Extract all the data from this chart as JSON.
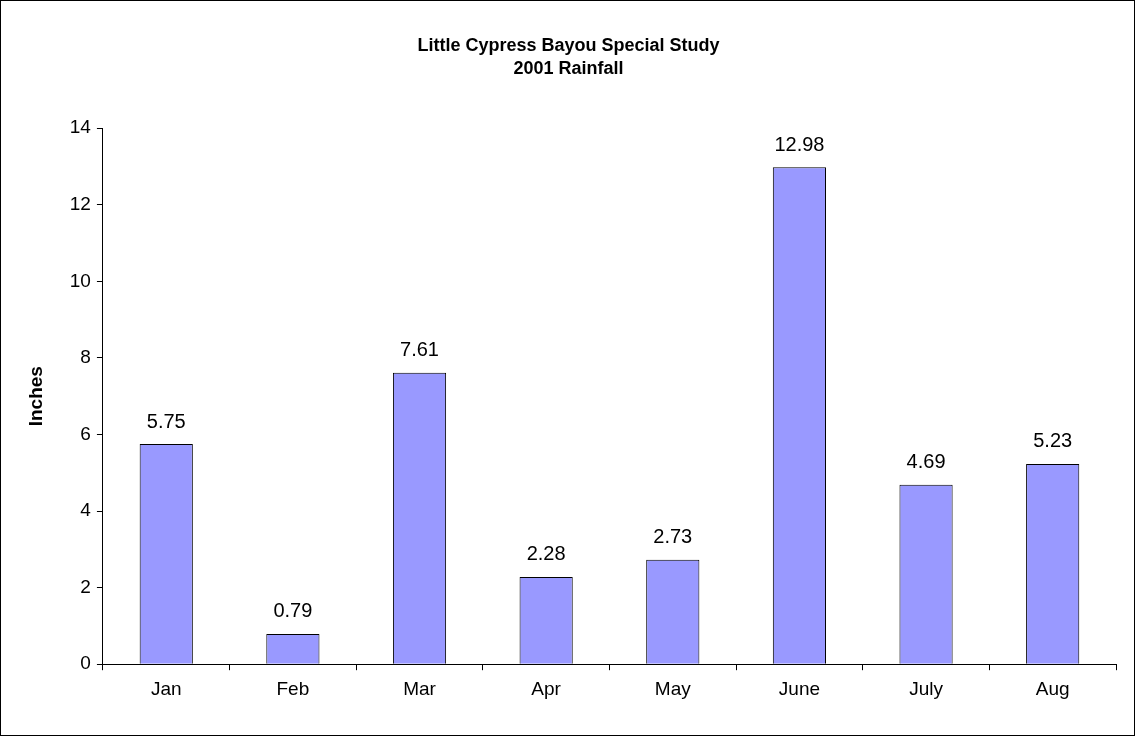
{
  "chart_data": {
    "type": "bar",
    "title": "Little Cypress Bayou Special Study",
    "subtitle": "2001 Rainfall",
    "ylabel": "Inches",
    "categories": [
      "Jan",
      "Feb",
      "Mar",
      "Apr",
      "May",
      "June",
      "July",
      "Aug"
    ],
    "values": [
      5.75,
      0.79,
      7.61,
      2.28,
      2.73,
      12.98,
      4.69,
      5.23
    ],
    "color": "#9999ff",
    "ylim": [
      0,
      14
    ],
    "yticks": [
      0,
      2,
      4,
      6,
      8,
      10,
      12,
      14
    ],
    "grid": false,
    "legend": false,
    "data_labels": true
  }
}
